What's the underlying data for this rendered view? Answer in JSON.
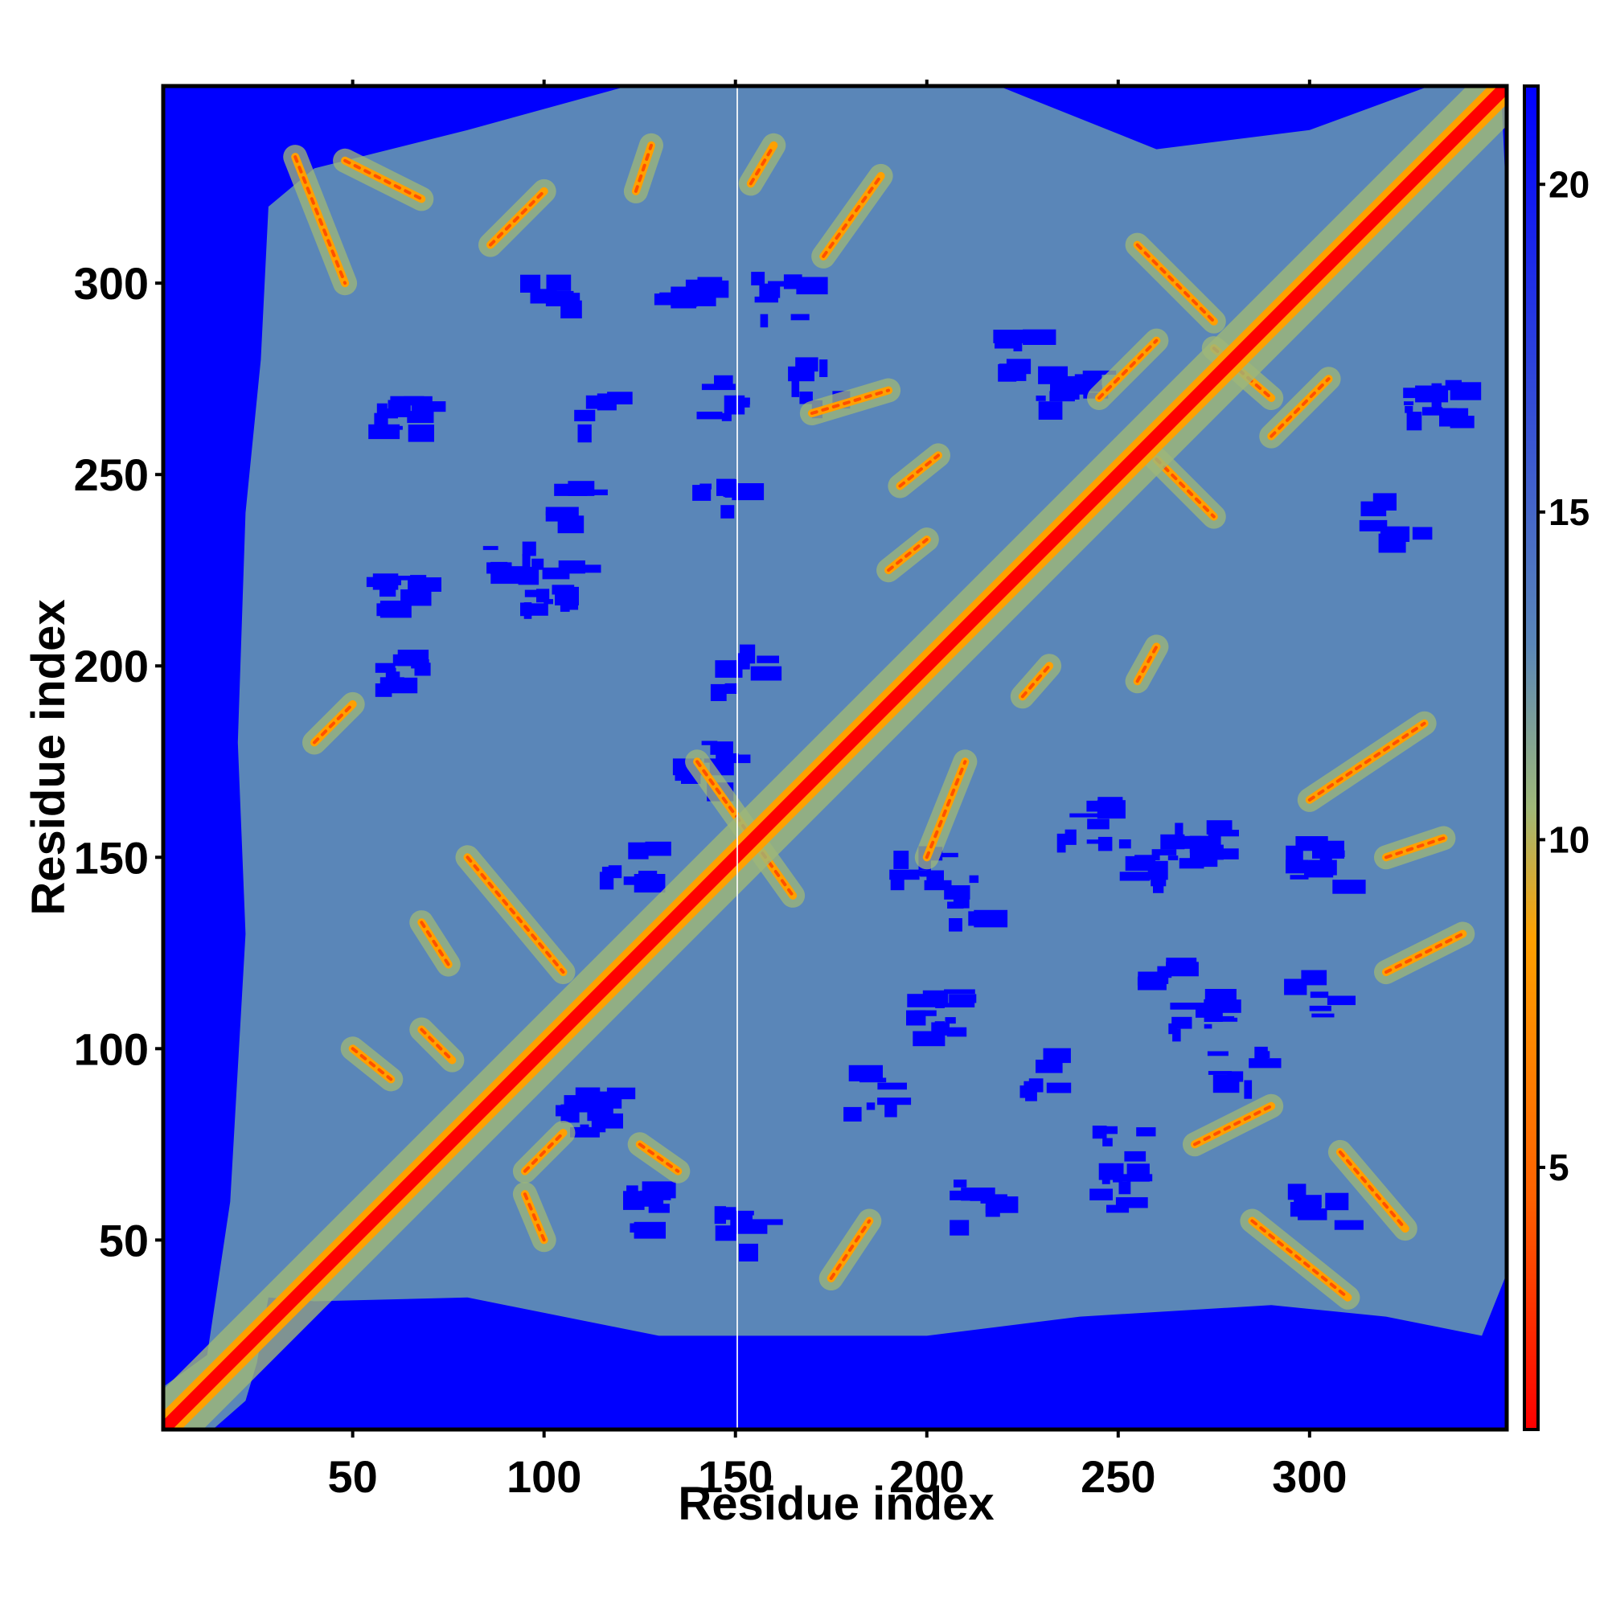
{
  "chart_data": {
    "type": "heatmap",
    "title": "",
    "xlabel": "Residue index",
    "ylabel": "Residue index",
    "n_residues": 351,
    "xlim": [
      1,
      351
    ],
    "ylim": [
      1,
      351
    ],
    "x_ticks": [
      50,
      100,
      150,
      200,
      250,
      300
    ],
    "y_ticks": [
      50,
      100,
      150,
      200,
      250,
      300
    ],
    "x_tick_labels": [
      "50",
      "100",
      "150",
      "200",
      "250",
      "300"
    ],
    "y_tick_labels": [
      "50",
      "100",
      "150",
      "200",
      "250",
      "300"
    ],
    "colorbar": {
      "range": [
        1,
        21.5
      ],
      "ticks": [
        5,
        10,
        15,
        20
      ],
      "tick_labels": [
        "5",
        "10",
        "15",
        "20"
      ],
      "colors": [
        "#ff0000",
        "#ff6000",
        "#ffa000",
        "#9fb878",
        "#5a86b8",
        "#0000ff"
      ],
      "stops": [
        1,
        4.5,
        8.5,
        10.5,
        13,
        21.5
      ]
    },
    "diagonal_band": {
      "description_values": "distance ~1-4 near diagonal"
    },
    "contact_segments": [
      {
        "type": "anti",
        "x": [
          35,
          48
        ],
        "y": [
          300,
          333
        ]
      },
      {
        "type": "anti",
        "x": [
          48,
          68
        ],
        "y": [
          322,
          332
        ]
      },
      {
        "type": "parallel",
        "x": [
          86,
          100
        ],
        "y": [
          310,
          324
        ]
      },
      {
        "type": "parallel",
        "x": [
          124,
          128
        ],
        "y": [
          324,
          336
        ]
      },
      {
        "type": "parallel",
        "x": [
          154,
          160
        ],
        "y": [
          326,
          336
        ]
      },
      {
        "type": "parallel",
        "x": [
          173,
          188
        ],
        "y": [
          307,
          328
        ]
      },
      {
        "type": "anti",
        "x": [
          68,
          75
        ],
        "y": [
          122,
          133
        ]
      },
      {
        "type": "anti",
        "x": [
          68,
          76
        ],
        "y": [
          97,
          105
        ]
      },
      {
        "type": "parallel",
        "x": [
          95,
          105
        ],
        "y": [
          68,
          78
        ]
      },
      {
        "type": "anti",
        "x": [
          125,
          135
        ],
        "y": [
          68,
          75
        ]
      },
      {
        "type": "anti",
        "x": [
          50,
          60
        ],
        "y": [
          92,
          100
        ]
      },
      {
        "type": "anti",
        "x": [
          95,
          100
        ],
        "y": [
          50,
          62
        ]
      },
      {
        "type": "parallel",
        "x": [
          193,
          203
        ],
        "y": [
          247,
          255
        ]
      },
      {
        "type": "parallel",
        "x": [
          190,
          200
        ],
        "y": [
          225,
          233
        ]
      },
      {
        "type": "parallel",
        "x": [
          170,
          190
        ],
        "y": [
          266,
          272
        ]
      },
      {
        "type": "parallel",
        "x": [
          225,
          232
        ],
        "y": [
          192,
          200
        ]
      },
      {
        "type": "parallel",
        "x": [
          255,
          260
        ],
        "y": [
          196,
          205
        ]
      },
      {
        "type": "anti",
        "x": [
          260,
          275
        ],
        "y": [
          239,
          254
        ]
      },
      {
        "type": "anti",
        "x": [
          285,
          310
        ],
        "y": [
          35,
          55
        ]
      },
      {
        "type": "anti",
        "x": [
          308,
          325
        ],
        "y": [
          53,
          73
        ]
      },
      {
        "type": "parallel",
        "x": [
          245,
          260
        ],
        "y": [
          270,
          285
        ]
      },
      {
        "type": "anti",
        "x": [
          255,
          275
        ],
        "y": [
          290,
          310
        ]
      },
      {
        "type": "anti",
        "x": [
          275,
          290
        ],
        "y": [
          270,
          283
        ]
      },
      {
        "type": "parallel",
        "x": [
          290,
          305
        ],
        "y": [
          260,
          275
        ]
      },
      {
        "type": "parallel",
        "x": [
          300,
          330
        ],
        "y": [
          165,
          185
        ]
      },
      {
        "type": "parallel",
        "x": [
          320,
          335
        ],
        "y": [
          150,
          155
        ]
      },
      {
        "type": "parallel",
        "x": [
          320,
          340
        ],
        "y": [
          120,
          130
        ]
      },
      {
        "type": "parallel",
        "x": [
          200,
          210
        ],
        "y": [
          150,
          175
        ]
      },
      {
        "type": "anti",
        "x": [
          140,
          165
        ],
        "y": [
          140,
          175
        ]
      },
      {
        "type": "anti",
        "x": [
          80,
          105
        ],
        "y": [
          120,
          150
        ]
      },
      {
        "type": "parallel",
        "x": [
          40,
          50
        ],
        "y": [
          180,
          190
        ]
      },
      {
        "type": "parallel",
        "x": [
          175,
          185
        ],
        "y": [
          40,
          55
        ]
      },
      {
        "type": "parallel",
        "x": [
          270,
          290
        ],
        "y": [
          75,
          85
        ]
      }
    ]
  }
}
